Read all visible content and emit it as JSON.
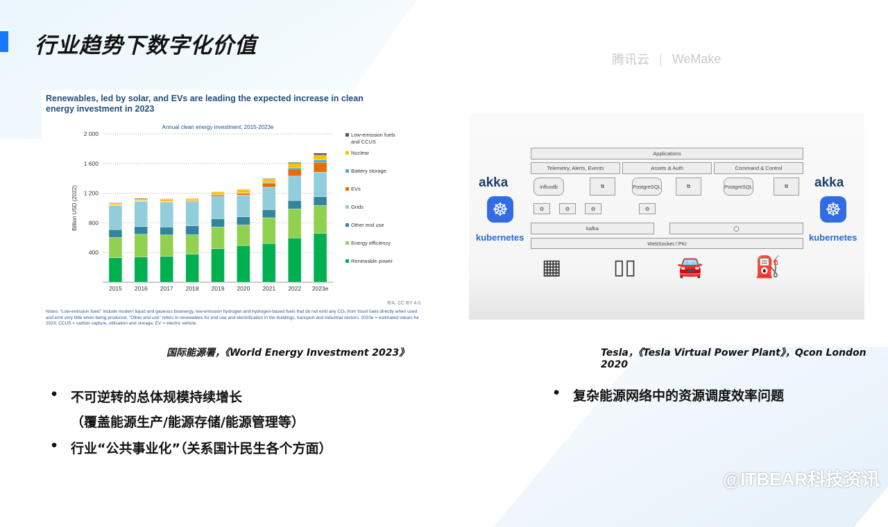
{
  "slide": {
    "title": "行业趋势下数字化价值",
    "logos": [
      "腾讯云",
      "WeMake"
    ],
    "watermark": "@ITBEAR科技资讯"
  },
  "left": {
    "caption": "国际能源署，《World Energy Investment 2023》",
    "source": "IEA. CC BY 4.0.",
    "notes": "Notes: \"Low-emission fuels\" include modern liquid and gaseous bioenergy, low-emission hydrogen and hydrogen-based fuels that do not emit any CO₂ from fossil fuels directly when used and emit very little when being produced; \"Other end use\" refers to renewables for end use and electrification in the buildings, transport and industrial sectors. 2023e = estimated values for 2023; CCUS = carbon capture, utilisation and storage; EV = electric vehicle.",
    "bullets": [
      "不可逆转的总体规模持续增长",
      "（覆盖能源生产/能源存储/能源管理等）",
      "行业“公共事业化”（关系国计民生各个方面）"
    ]
  },
  "right": {
    "caption": "Tesla，《Tesla Virtual Power Plant》，Qcon London 2020",
    "bullets": [
      "复杂能源网络中的资源调度效率问题"
    ],
    "diagram": {
      "top": "Applications",
      "row2": [
        "Telemetry, Alerts, Events",
        "Assets & Auth",
        "Command & Control"
      ],
      "dbs": [
        "influxdb",
        "PostgreSQL",
        "PostgreSQL"
      ],
      "bus": "kafka",
      "transport": "WebSocket / PKI",
      "brand1": "akka",
      "brand2": "kubernetes"
    }
  },
  "chart_data": {
    "type": "bar",
    "stacked": true,
    "headline": "Renewables, led by solar, and EVs are leading the expected increase in clean energy investment in 2023",
    "title": "Annual clean energy investment, 2015-2023e",
    "ylabel": "Billion USD (2022)",
    "ylim": [
      0,
      2000
    ],
    "yticks": [
      "400",
      "800",
      "1 200",
      "1 600",
      "2 000"
    ],
    "ytick_values": [
      400,
      800,
      1200,
      1600,
      2000
    ],
    "grid": true,
    "legend": "right",
    "categories": [
      "2015",
      "2016",
      "2017",
      "2018",
      "2019",
      "2020",
      "2021",
      "2022",
      "2023e"
    ],
    "series": [
      {
        "name": "Renewable power",
        "color": "#00b050",
        "values": [
          331,
          341,
          350,
          378,
          453,
          494,
          522,
          597,
          659
        ]
      },
      {
        "name": "Energy efficiency",
        "color": "#92d050",
        "values": [
          272,
          306,
          287,
          262,
          291,
          278,
          347,
          391,
          375
        ]
      },
      {
        "name": "Other end use",
        "color": "#31859c",
        "values": [
          106,
          103,
          107,
          119,
          112,
          109,
          109,
          112,
          119
        ]
      },
      {
        "name": "Grids",
        "color": "#92cddc",
        "values": [
          328,
          340,
          334,
          319,
          300,
          294,
          303,
          331,
          331
        ]
      },
      {
        "name": "EVs",
        "color": "#e46c0a",
        "values": [
          3,
          5,
          7,
          10,
          20,
          25,
          55,
          94,
          132
        ]
      },
      {
        "name": "Battery storage",
        "color": "#4bacc6",
        "values": [
          5,
          5,
          5,
          8,
          5,
          5,
          10,
          22,
          34
        ]
      },
      {
        "name": "Nuclear",
        "color": "#ffc000",
        "values": [
          25,
          22,
          29,
          25,
          35,
          45,
          48,
          53,
          63
        ]
      },
      {
        "name": "Low-emission fuels and CCUS",
        "color": "#595959",
        "values": [
          5,
          10,
          6,
          6,
          5,
          5,
          8,
          16,
          28
        ]
      }
    ]
  }
}
